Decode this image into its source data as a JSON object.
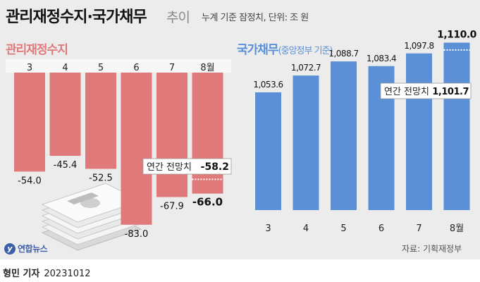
{
  "header": {
    "title": "관리재정수지·국가채무",
    "title_suffix": "추이",
    "subtitle": "누계 기준 잠정치, 단위: 조 원"
  },
  "sections": {
    "left_title": "관리재정수지",
    "right_title": "국가채무",
    "right_title_sub": "(중앙정부 기준)"
  },
  "chart_data": [
    {
      "type": "bar",
      "title": "관리재정수지",
      "categories": [
        "3",
        "4",
        "5",
        "6",
        "7",
        "8월"
      ],
      "values": [
        -54.0,
        -45.4,
        -52.5,
        -83.0,
        -67.9,
        -66.0
      ],
      "value_labels": [
        "-54.0",
        "-45.4",
        "-52.5",
        "-83.0",
        "-67.9",
        "-66.0"
      ],
      "ylim": [
        -90,
        0
      ],
      "color": "#e07a7a",
      "reference_line": {
        "label": "연간 전망치",
        "value": -58.2,
        "value_label": "-58.2"
      }
    },
    {
      "type": "bar",
      "title": "국가채무",
      "categories": [
        "3",
        "4",
        "5",
        "6",
        "7",
        "8월"
      ],
      "values": [
        1053.6,
        1072.7,
        1088.7,
        1083.4,
        1097.8,
        1110.0
      ],
      "value_labels": [
        "1,053.6",
        "1,072.7",
        "1,088.7",
        "1,083.4",
        "1,097.8",
        "1,110.0"
      ],
      "color": "#5b8fd6",
      "reference_line": {
        "label": "연간 전망치",
        "value": 1101.7,
        "value_label": "1,101.7"
      }
    }
  ],
  "footer": {
    "logo": "연합뉴스",
    "source": "자료: 기획재정부",
    "reporter": "형민 기자",
    "date": "20231012"
  }
}
